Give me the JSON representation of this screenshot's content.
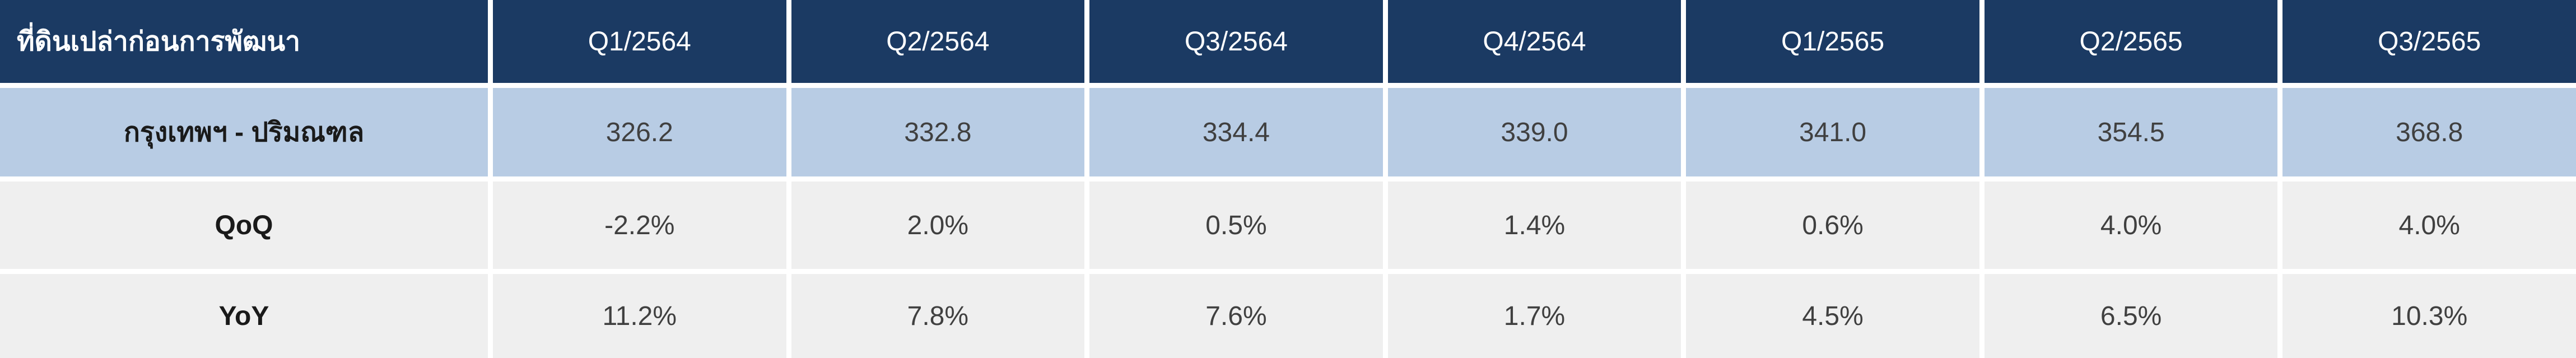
{
  "table": {
    "header": [
      "ที่ดินเปล่าก่อนการพัฒนา",
      "Q1/2564",
      "Q2/2564",
      "Q3/2564",
      "Q4/2564",
      "Q1/2565",
      "Q2/2565",
      "Q3/2565"
    ],
    "rows": [
      [
        "กรุงเทพฯ - ปริมณฑล",
        "326.2",
        "332.8",
        "334.4",
        "339.0",
        "341.0",
        "354.5",
        "368.8"
      ],
      [
        "QoQ",
        "-2.2%",
        "2.0%",
        "0.5%",
        "1.4%",
        "0.6%",
        "4.0%",
        "4.0%"
      ],
      [
        "YoY",
        "11.2%",
        "7.8%",
        "7.6%",
        "1.7%",
        "4.5%",
        "6.5%",
        "10.3%"
      ]
    ]
  }
}
